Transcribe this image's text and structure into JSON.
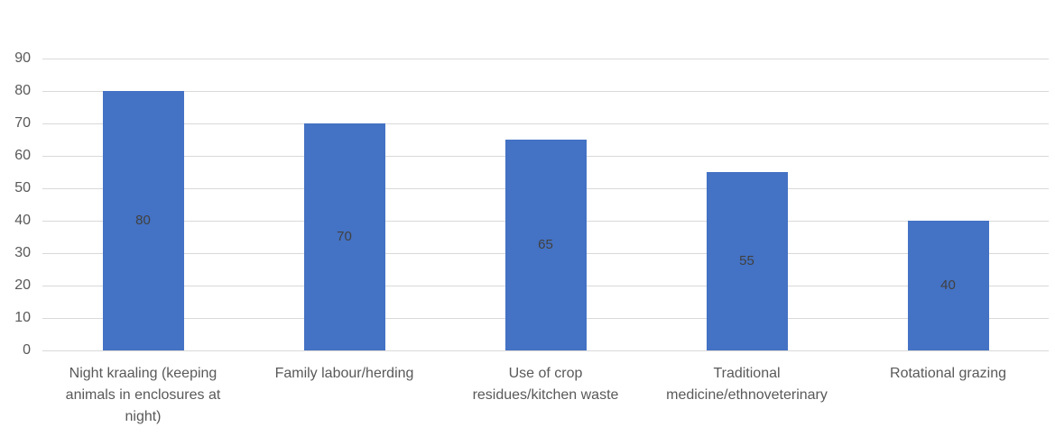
{
  "chart_data": {
    "type": "bar",
    "title": "",
    "categories": [
      "Night kraaling (keeping animals in enclosures at night)",
      "Family labour/herding",
      "Use of crop residues/kitchen waste",
      "Traditional medicine/ethnoveterinary",
      "Rotational grazing"
    ],
    "values": [
      80,
      70,
      65,
      55,
      40
    ],
    "data_labels": [
      "80",
      "70",
      "65",
      "55",
      "40"
    ],
    "xlabel": "",
    "ylabel": "",
    "yticks": [
      0,
      10,
      20,
      30,
      40,
      50,
      60,
      70,
      80,
      90
    ],
    "ylim": [
      0,
      90
    ],
    "grid": true,
    "legend": "none",
    "category_display_lines": [
      [
        "Night kraaling (keeping",
        "animals in enclosures at",
        "night)"
      ],
      [
        "Family labour/herding"
      ],
      [
        "Use of crop",
        "residues/kitchen waste"
      ],
      [
        "Traditional",
        "medicine/ethnoveterinary"
      ],
      [
        "Rotational grazing"
      ]
    ],
    "colors": {
      "bar": "#4472C4",
      "value_label": "#404040",
      "axis_text": "#595959",
      "gridline": "#D9D9D9",
      "background": "#FFFFFF"
    }
  }
}
